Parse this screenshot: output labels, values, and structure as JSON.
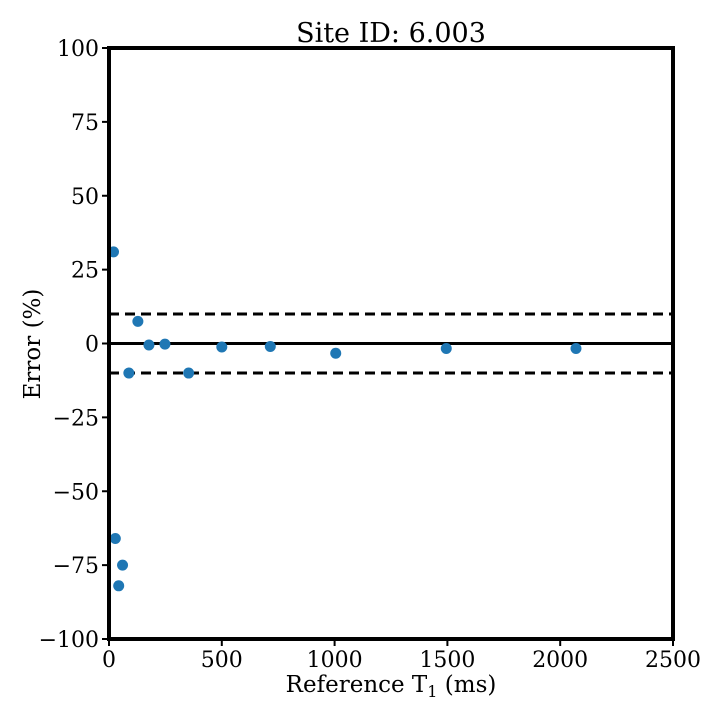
{
  "chart_data": {
    "type": "scatter",
    "title": "Site ID: 6.003",
    "xlabel": "Reference T",
    "xlabel_sub": "1",
    "xlabel_unit": " (ms)",
    "ylabel": "Error (%)",
    "xlim": [
      0,
      2500
    ],
    "ylim": [
      -100,
      100
    ],
    "xticks": [
      0,
      500,
      1000,
      1500,
      2000,
      2500
    ],
    "yticks": [
      100,
      75,
      50,
      25,
      0,
      -25,
      -50,
      -75,
      -100
    ],
    "ytick_labels": [
      "100",
      "75",
      "50",
      "25",
      "0",
      "−25",
      "−50",
      "−75",
      "−100"
    ],
    "grid": false,
    "reference_lines": [
      {
        "y": 0,
        "style": "solid"
      },
      {
        "y": 10,
        "style": "dashed"
      },
      {
        "y": -10,
        "style": "dashed"
      }
    ],
    "series": [
      {
        "color": "#1f77b4",
        "points": [
          {
            "x": 20,
            "y": 31
          },
          {
            "x": 28,
            "y": -66
          },
          {
            "x": 43,
            "y": -82
          },
          {
            "x": 60,
            "y": -75
          },
          {
            "x": 88,
            "y": -10
          },
          {
            "x": 128,
            "y": 7.5
          },
          {
            "x": 177,
            "y": -0.5
          },
          {
            "x": 248,
            "y": -0.2
          },
          {
            "x": 353,
            "y": -10
          },
          {
            "x": 500,
            "y": -1.2
          },
          {
            "x": 715,
            "y": -1
          },
          {
            "x": 1005,
            "y": -3.3
          },
          {
            "x": 1495,
            "y": -1.7
          },
          {
            "x": 2070,
            "y": -1.7
          }
        ]
      }
    ]
  }
}
